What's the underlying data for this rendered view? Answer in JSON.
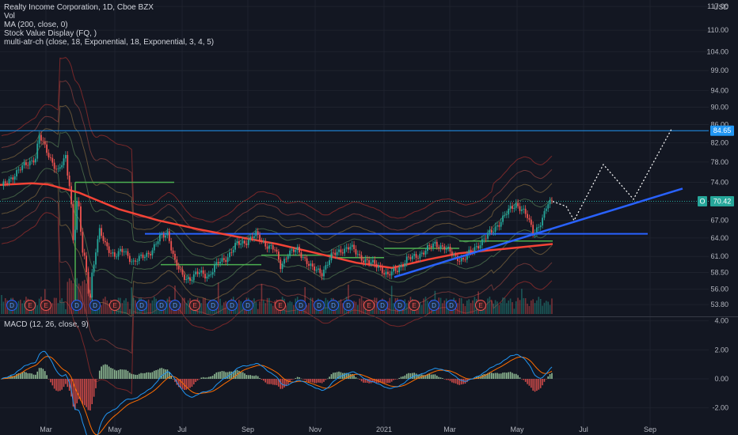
{
  "header": {
    "symbol_line": "Realty Income Corporation, 1D, Cboe BZX",
    "indicators": [
      "Vol",
      "MA (200, close, 0)",
      "Stock Value Display (FQ, )",
      "multi-atr-ch (close, 18, Exponential, 18, Exponential, 3, 4, 5)"
    ],
    "currency": "USD",
    "macd_label": "MACD (12, 26, close, 9)"
  },
  "colors": {
    "background": "#131722",
    "up": "#26a69a",
    "down": "#ef5350",
    "ma": "#f44336",
    "trend": "#2962ff",
    "hline": "#2196f3",
    "macd": "#2196f3",
    "signal": "#ff6d00"
  },
  "chart_data": [
    {
      "type": "candlestick",
      "x_ticks": [
        "Mar",
        "May",
        "Jul",
        "Sep",
        "Nov",
        "2021",
        "Mar",
        "May",
        "Jul",
        "Sep"
      ],
      "y_ticks": [
        117.0,
        110.0,
        104.0,
        99.0,
        94.0,
        90.0,
        86.0,
        82.0,
        78.0,
        74.0,
        70.0,
        67.0,
        64.0,
        61.0,
        58.5,
        56.0,
        53.8
      ],
      "scale": "log",
      "ylim": [
        52.5,
        118.5
      ],
      "current_price": 70.42,
      "current_price_label": "70.42",
      "target_level": 84.65,
      "target_level_label": "84.65",
      "price_tag_letter": "O",
      "event_markers": [
        {
          "letter": "D",
          "month": "Feb 2020"
        },
        {
          "letter": "E",
          "month": "Feb 2020"
        },
        {
          "letter": "E",
          "month": "Feb 2020"
        },
        {
          "letter": "D",
          "month": "Mar 2020"
        },
        {
          "letter": "D",
          "month": "Apr 2020"
        },
        {
          "letter": "E",
          "month": "May 2020"
        },
        {
          "letter": "D",
          "month": "Jun 2020"
        },
        {
          "letter": "D",
          "month": "Jun 2020"
        },
        {
          "letter": "D",
          "month": "Jul 2020"
        },
        {
          "letter": "E",
          "month": "Aug 2020"
        },
        {
          "letter": "D",
          "month": "Aug 2020"
        },
        {
          "letter": "D",
          "month": "Sep 2020"
        },
        {
          "letter": "D",
          "month": "Oct 2020"
        },
        {
          "letter": "E",
          "month": "Nov 2020"
        },
        {
          "letter": "D",
          "month": "Nov 2020"
        },
        {
          "letter": "D",
          "month": "Dec 2020"
        },
        {
          "letter": "D",
          "month": "Jan 2021"
        },
        {
          "letter": "D",
          "month": "Feb 2021"
        },
        {
          "letter": "E",
          "month": "Feb 2021"
        },
        {
          "letter": "D",
          "month": "Mar 2021"
        },
        {
          "letter": "D",
          "month": "Apr 2021"
        },
        {
          "letter": "E",
          "month": "May 2021"
        },
        {
          "letter": "D",
          "month": "May 2021"
        },
        {
          "letter": "D",
          "month": "Jun 2021"
        },
        {
          "letter": "E",
          "month": "Aug 2021"
        }
      ]
    },
    {
      "type": "macd",
      "y_ticks": [
        4.0,
        2.0,
        0.0,
        -2.0
      ],
      "ylim": [
        -3.6,
        4.2
      ]
    }
  ]
}
